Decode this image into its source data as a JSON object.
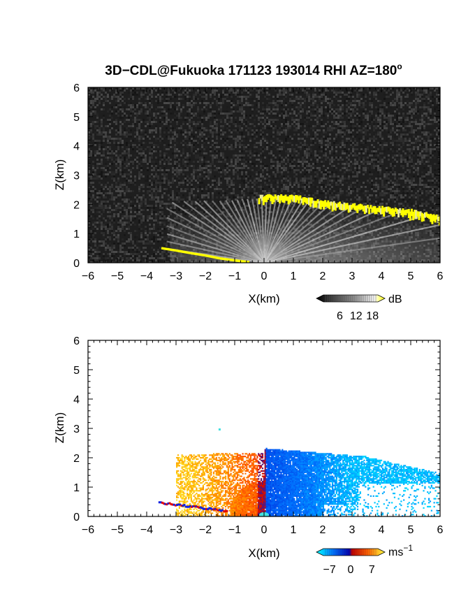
{
  "figure": {
    "title": "3D−CDL@Fukuoka 171123 193014 RHI AZ=180",
    "title_superscript": "o"
  },
  "chart_data": [
    {
      "type": "heatmap",
      "panel": "reflectivity",
      "xlabel": "X(km)",
      "ylabel": "Z(km)",
      "xlim": [
        -6,
        6
      ],
      "ylim": [
        0,
        6
      ],
      "xticks": [
        "−6",
        "−5",
        "−4",
        "−3",
        "−2",
        "−1",
        "0",
        "1",
        "2",
        "3",
        "4",
        "5",
        "6"
      ],
      "yticks": [
        "0",
        "1",
        "2",
        "3",
        "4",
        "5",
        "6"
      ],
      "background": "noise",
      "colorbar": {
        "unit": "dB",
        "ticks": [
          "6",
          "12",
          "18"
        ],
        "tick_values": [
          6,
          12,
          18
        ],
        "range": [
          0,
          20
        ],
        "colors": [
          "#000000",
          "#ffffff",
          "#ffff00"
        ]
      },
      "cloud_top_band_x_km": [
        -0.2,
        0.5,
        1.0,
        1.5,
        2.0,
        2.5,
        3.0,
        3.5,
        4.0,
        4.5,
        5.0,
        5.5,
        6.0
      ],
      "cloud_top_band_z_km": [
        2.2,
        2.2,
        2.2,
        2.1,
        2.0,
        1.95,
        1.9,
        1.85,
        1.8,
        1.75,
        1.7,
        1.6,
        1.5
      ],
      "surface_band_x_km": [
        -3.5,
        -3.0,
        -2.5,
        -2.0,
        -1.5,
        -1.0,
        -0.5
      ],
      "surface_band_z_km": [
        0.5,
        0.42,
        0.33,
        0.25,
        0.15,
        0.08,
        0.02
      ]
    },
    {
      "type": "heatmap",
      "panel": "doppler_velocity",
      "xlabel": "X(km)",
      "ylabel": "Z(km)",
      "xlim": [
        -6,
        6
      ],
      "ylim": [
        0,
        6
      ],
      "xticks": [
        "−6",
        "−5",
        "−4",
        "−3",
        "−2",
        "−1",
        "0",
        "1",
        "2",
        "3",
        "4",
        "5",
        "6"
      ],
      "yticks": [
        "0",
        "1",
        "2",
        "3",
        "4",
        "5",
        "6"
      ],
      "colorbar": {
        "unit": "ms",
        "unit_superscript": "−1",
        "ticks": [
          "−7",
          "0",
          "7"
        ],
        "tick_values": [
          -7,
          0,
          7
        ],
        "range": [
          -9,
          9
        ],
        "colors": [
          "#00ffff",
          "#0060ff",
          "#0000c0",
          "#c00000",
          "#ff5000",
          "#ffa000",
          "#ffff40"
        ]
      },
      "echo_extent_left_km": -3.0,
      "echo_extent_right_km": 6.0,
      "echo_top_km": 2.4,
      "velocity_left_of_radar_ms": 7,
      "velocity_right_of_radar_ms": -5
    }
  ]
}
